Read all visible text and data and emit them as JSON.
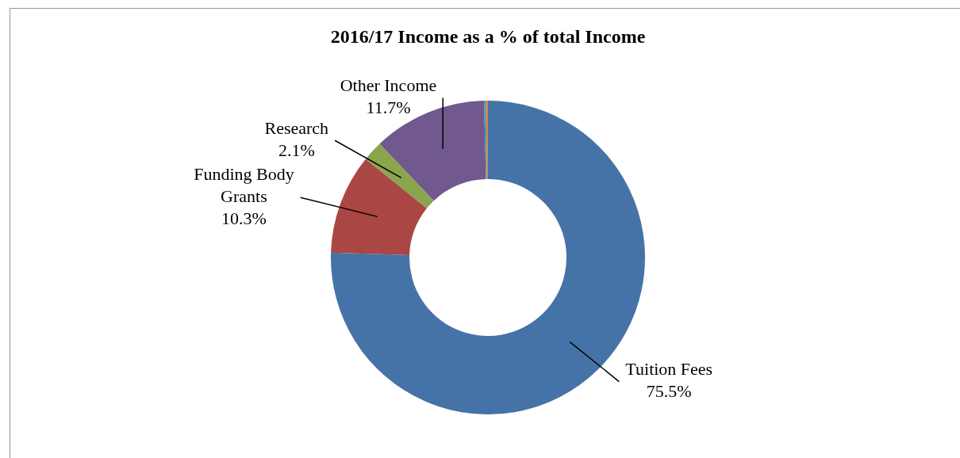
{
  "chart_data": {
    "type": "donut",
    "title": "2016/17 Income as a % of total Income",
    "categories": [
      "Tuition Fees",
      "Funding Body Grants",
      "Research",
      "Other Income",
      null,
      null
    ],
    "values": [
      75.5,
      10.3,
      2.1,
      11.7,
      0.2,
      0.2
    ],
    "value_labels": [
      "75.5%",
      "10.3%",
      "2.1%",
      "11.7%",
      null,
      null
    ],
    "colors": [
      "#4573a7",
      "#aa4643",
      "#89a54e",
      "#71588f",
      "#4198af",
      "#db843d"
    ],
    "legend": false
  }
}
